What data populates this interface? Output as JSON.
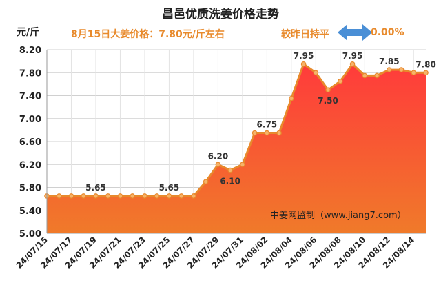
{
  "header": {
    "title": "昌邑优质洗姜价格走势",
    "headline": "8月15日大姜价格：7.80元/斤左右",
    "compare_label": "较昨日持平",
    "change_value": "0.00%",
    "arrow_icon": "double-arrow-icon"
  },
  "colors": {
    "line": "#e8892c",
    "area_top": "#ff3b3b",
    "area_bottom": "#f07a2a",
    "marker_fill": "#f6b36a",
    "highlight_text": "#e88a2c",
    "arrow": "#4a8fd6"
  },
  "chart_data": {
    "type": "area",
    "ylabel": "元/斤",
    "ylim": [
      5.0,
      8.2
    ],
    "yticks": [
      "5.00",
      "5.40",
      "5.80",
      "6.20",
      "6.60",
      "7.00",
      "7.40",
      "7.80",
      "8.20"
    ],
    "xtick_labels": [
      "24/07/15",
      "24/07/17",
      "24/07/19",
      "24/07/21",
      "24/07/23",
      "24/07/25",
      "24/07/27",
      "24/07/29",
      "24/07/31",
      "24/08/02",
      "24/08/04",
      "24/08/06",
      "24/08/08",
      "24/08/10",
      "24/08/12",
      "24/08/14"
    ],
    "x": [
      "24/07/15",
      "24/07/16",
      "24/07/17",
      "24/07/18",
      "24/07/19",
      "24/07/20",
      "24/07/21",
      "24/07/22",
      "24/07/23",
      "24/07/24",
      "24/07/25",
      "24/07/26",
      "24/07/27",
      "24/07/28",
      "24/07/29",
      "24/07/30",
      "24/07/31",
      "24/08/01",
      "24/08/02",
      "24/08/03",
      "24/08/04",
      "24/08/05",
      "24/08/06",
      "24/08/07",
      "24/08/08",
      "24/08/09",
      "24/08/10",
      "24/08/11",
      "24/08/12",
      "24/08/13",
      "24/08/14",
      "24/08/15"
    ],
    "values": [
      5.65,
      5.65,
      5.65,
      5.65,
      5.65,
      5.65,
      5.65,
      5.65,
      5.65,
      5.65,
      5.65,
      5.65,
      5.65,
      5.9,
      6.2,
      6.1,
      6.2,
      6.75,
      6.75,
      6.75,
      7.35,
      7.95,
      7.8,
      7.5,
      7.65,
      7.95,
      7.75,
      7.75,
      7.85,
      7.85,
      7.8,
      7.8
    ],
    "data_labels": [
      {
        "index": 4,
        "text": "5.65"
      },
      {
        "index": 10,
        "text": "5.65"
      },
      {
        "index": 14,
        "text": "6.20"
      },
      {
        "index": 15,
        "text": "6.10"
      },
      {
        "index": 18,
        "text": "6.75"
      },
      {
        "index": 21,
        "text": "7.95"
      },
      {
        "index": 23,
        "text": "7.50"
      },
      {
        "index": 25,
        "text": "7.95"
      },
      {
        "index": 28,
        "text": "7.85"
      },
      {
        "index": 31,
        "text": "7.80"
      }
    ],
    "source_note": "中姜网监制（www.jiang7.com）",
    "grid": true,
    "legend": "none"
  }
}
